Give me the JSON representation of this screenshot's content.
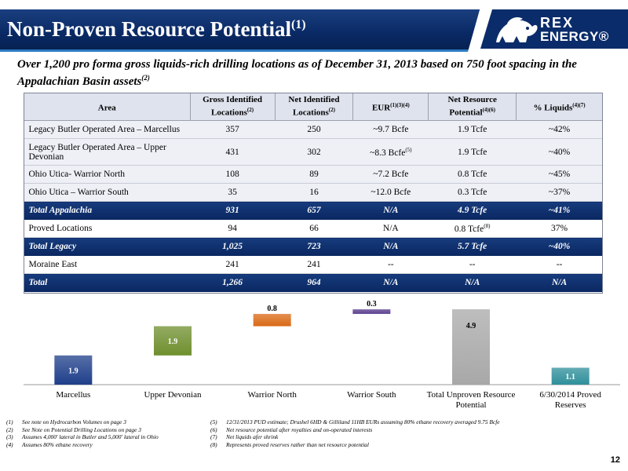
{
  "header": {
    "title": "Non-Proven Resource Potential",
    "title_note": "(1)",
    "logo_line1": "REX",
    "logo_line2": "ENERGY®"
  },
  "subtitle": {
    "text": "Over 1,200 pro forma gross liquids-rich drilling locations as of December 31, 2013 based on 750 foot spacing in the Appalachian Basin assets",
    "note": "(2)"
  },
  "table": {
    "headers": [
      {
        "label": "Area",
        "note": ""
      },
      {
        "label": "Gross Identified Locations",
        "note": "(2)"
      },
      {
        "label": "Net Identified Locations",
        "note": "(2)"
      },
      {
        "label": "EUR",
        "note": "(1)(3)(4)"
      },
      {
        "label": "Net Resource Potential",
        "note": "(4)(6)"
      },
      {
        "label": "% Liquids",
        "note": "(4)(7)"
      }
    ],
    "rows": [
      {
        "style": "light",
        "cells": [
          "Legacy Butler Operated Area – Marcellus",
          "357",
          "250",
          "~9.7 Bcfe",
          "1.9 Tcfe",
          "~42%"
        ]
      },
      {
        "style": "light",
        "cells": [
          "Legacy Butler Operated Area – Upper Devonian",
          "431",
          "302",
          "~8.3 Bcfe",
          "1.9 Tcfe",
          "~40%"
        ],
        "eur_note": "(5)"
      },
      {
        "style": "light",
        "cells": [
          "Ohio Utica-  Warrior North",
          "108",
          "89",
          "~7.2 Bcfe",
          "0.8 Tcfe",
          "~45%"
        ]
      },
      {
        "style": "light",
        "cells": [
          "Ohio Utica – Warrior South",
          "35",
          "16",
          "~12.0 Bcfe",
          "0.3 Tcfe",
          "~37%"
        ]
      },
      {
        "style": "dark",
        "cells": [
          "Total Appalachia",
          "931",
          "657",
          "N/A",
          "4.9 Tcfe",
          "~41%"
        ]
      },
      {
        "style": "white",
        "cells": [
          "Proved Locations",
          "94",
          "66",
          "N/A",
          "0.8 Tcfe",
          "37%"
        ],
        "nrp_note": "(8)"
      },
      {
        "style": "dark",
        "cells": [
          "Total Legacy",
          "1,025",
          "723",
          "N/A",
          "5.7 Tcfe",
          "~40%"
        ]
      },
      {
        "style": "white",
        "cells": [
          "Moraine East",
          "241",
          "241",
          "--",
          "--",
          "--"
        ]
      },
      {
        "style": "dark",
        "cells": [
          "Total",
          "1,266",
          "964",
          "N/A",
          "N/A",
          "N/A"
        ]
      }
    ]
  },
  "chart_data": {
    "type": "bar",
    "subtype": "waterfall",
    "categories": [
      "Marcellus",
      "Upper Devonian",
      "Warrior North",
      "Warrior South",
      "Total Unproven Resource Potential",
      "6/30/2014 Proved Reserves"
    ],
    "values": [
      1.9,
      1.9,
      0.8,
      0.3,
      4.9,
      1.1
    ],
    "bases": [
      0,
      1.9,
      3.8,
      4.6,
      0,
      0
    ],
    "labels": [
      "1.9",
      "1.9",
      "0.8",
      "0.3",
      "4.9",
      "1.1"
    ],
    "colors": [
      "#1f3f8a",
      "#6f8f2e",
      "#d96a16",
      "#5a3f8f",
      "#a8a8a8",
      "#2e8f9a"
    ],
    "title": "",
    "xlabel": "",
    "ylabel": "",
    "ylim": [
      0,
      4.9
    ],
    "grid": false,
    "legend": "none"
  },
  "footnotes": {
    "left": [
      {
        "num": "(1)",
        "text": "See note on Hydrocarbon Volumes on page 3"
      },
      {
        "num": "(2)",
        "text": "See Note on Potential Drilling Locations on page 3"
      },
      {
        "num": "(3)",
        "text": "Assumes 4,000' lateral in Butler and 5,000' lateral in Ohio"
      },
      {
        "num": "(4)",
        "text": "Assumes 80% ethane recovery"
      }
    ],
    "right": [
      {
        "num": "(5)",
        "text": "12/31/2013 PUD estimate; Drushel 6HD & Gilliland 11HB EURs assuming 80% ethane recovery averaged 9.75 Bcfe"
      },
      {
        "num": "(6)",
        "text": "Net resource potential after royalties and on-operated interests"
      },
      {
        "num": "(7)",
        "text": "Net liquids afer shrink"
      },
      {
        "num": "(8)",
        "text": "Represents proved reserves rather than net resource potential"
      }
    ]
  },
  "page_number": "12"
}
